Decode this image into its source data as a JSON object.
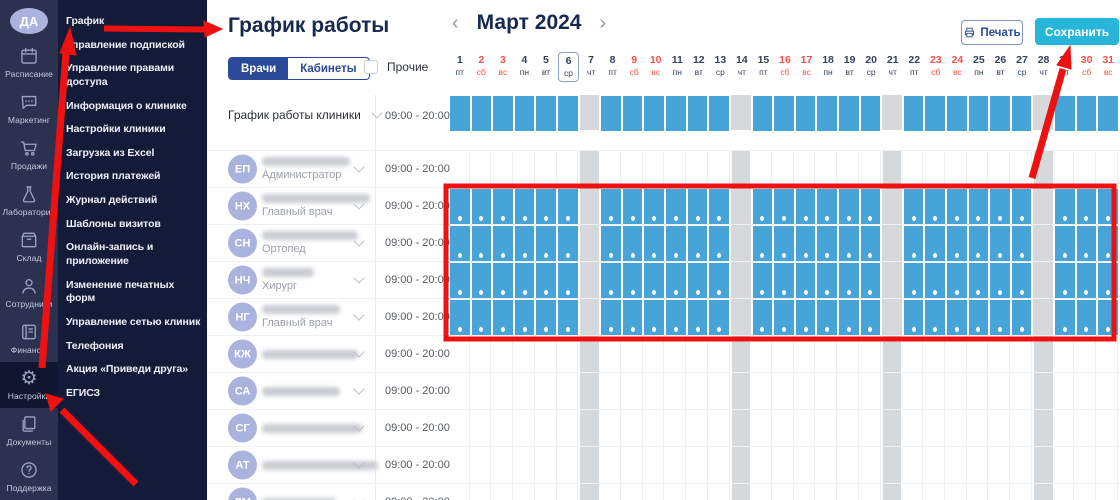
{
  "colors": {
    "annotation_red": "#ee1111",
    "schedule_blue": "#47a4d9",
    "closed_gray": "#d5d9db",
    "primary_navy": "#2a4a97",
    "save_cyan": "#27b6da"
  },
  "sidebar": {
    "avatar_initials": "ДА",
    "items": [
      {
        "id": "schedule",
        "icon": "calendar",
        "label": "Расписание",
        "active": false
      },
      {
        "id": "marketing",
        "icon": "chat",
        "label": "Маркетинг",
        "active": false
      },
      {
        "id": "sales",
        "icon": "cart",
        "label": "Продажи",
        "active": false
      },
      {
        "id": "labs",
        "icon": "flask",
        "label": "Лаборатории",
        "active": false
      },
      {
        "id": "warehouse",
        "icon": "box",
        "label": "Склад",
        "active": false
      },
      {
        "id": "staff",
        "icon": "person",
        "label": "Сотрудники",
        "active": false
      },
      {
        "id": "finance",
        "icon": "finance",
        "label": "Финансы",
        "active": false
      },
      {
        "id": "settings",
        "icon": "gear",
        "label": "Настройки",
        "active": true
      },
      {
        "id": "documents",
        "icon": "docs",
        "label": "Документы",
        "active": false
      },
      {
        "id": "support",
        "icon": "support",
        "label": "Поддержка",
        "active": false
      }
    ]
  },
  "menu": {
    "items": [
      "График",
      "Управление подпиской",
      "Управление правами доступа",
      "Информация о клинике",
      "Настройки клиники",
      "Загрузка из Excel",
      "История платежей",
      "Журнал действий",
      "Шаблоны визитов",
      "Онлайн-запись и приложение",
      "Изменение печатных форм",
      "Управление сетью клиник",
      "Телефония",
      "Акция «Приведи друга»",
      "ЕГИСЗ"
    ]
  },
  "header": {
    "title": "График работы",
    "prev_icon": "‹",
    "next_icon": "›",
    "month": "Март 2024",
    "print_label": "Печать",
    "save_label": "Сохранить"
  },
  "filters": {
    "tabs": [
      {
        "label": "Врачи",
        "active": true
      },
      {
        "label": "Кабинеты",
        "active": false
      }
    ],
    "other_label": "Прочие",
    "other_checked": false
  },
  "calendar": {
    "today": 6,
    "closed_days": [
      7,
      14,
      21,
      28
    ],
    "days": [
      {
        "n": 1,
        "w": "пт"
      },
      {
        "n": 2,
        "w": "сб"
      },
      {
        "n": 3,
        "w": "вс"
      },
      {
        "n": 4,
        "w": "пн"
      },
      {
        "n": 5,
        "w": "вт"
      },
      {
        "n": 6,
        "w": "ср"
      },
      {
        "n": 7,
        "w": "чт"
      },
      {
        "n": 8,
        "w": "пт"
      },
      {
        "n": 9,
        "w": "сб"
      },
      {
        "n": 10,
        "w": "вс"
      },
      {
        "n": 11,
        "w": "пн"
      },
      {
        "n": 12,
        "w": "вт"
      },
      {
        "n": 13,
        "w": "ср"
      },
      {
        "n": 14,
        "w": "чт"
      },
      {
        "n": 15,
        "w": "пт"
      },
      {
        "n": 16,
        "w": "сб"
      },
      {
        "n": 17,
        "w": "вс"
      },
      {
        "n": 18,
        "w": "пн"
      },
      {
        "n": 19,
        "w": "вт"
      },
      {
        "n": 20,
        "w": "ср"
      },
      {
        "n": 21,
        "w": "чт"
      },
      {
        "n": 22,
        "w": "пт"
      },
      {
        "n": 23,
        "w": "сб"
      },
      {
        "n": 24,
        "w": "вс"
      },
      {
        "n": 25,
        "w": "пн"
      },
      {
        "n": 26,
        "w": "вт"
      },
      {
        "n": 27,
        "w": "ср"
      },
      {
        "n": 28,
        "w": "чт"
      },
      {
        "n": 29,
        "w": "пт"
      },
      {
        "n": 30,
        "w": "сб"
      },
      {
        "n": 31,
        "w": "вс"
      }
    ]
  },
  "clinic_row": {
    "label": "График работы клиники",
    "time": "09:00 - 20:00"
  },
  "staff": [
    {
      "initials": "ЕП",
      "role": "Администратор",
      "time": "09:00 - 20:00",
      "scheduled": false,
      "name_width": 88
    },
    {
      "initials": "НХ",
      "role": "Главный врач",
      "time": "09:00 - 20:00",
      "scheduled": true,
      "name_width": 108
    },
    {
      "initials": "СН",
      "role": "Ортопед",
      "time": "09:00 - 20:00",
      "scheduled": true,
      "name_width": 96
    },
    {
      "initials": "НЧ",
      "role": "Хирург",
      "time": "09:00 - 20:00",
      "scheduled": true,
      "name_width": 52
    },
    {
      "initials": "НГ",
      "role": "Главный врач",
      "time": "09:00 - 20:00",
      "scheduled": true,
      "name_width": 78
    },
    {
      "initials": "КЖ",
      "role": "",
      "time": "09:00 - 20:00",
      "scheduled": false,
      "name_width": 96
    },
    {
      "initials": "СА",
      "role": "",
      "time": "09:00 - 20:00",
      "scheduled": false,
      "name_width": 78
    },
    {
      "initials": "СГ",
      "role": "",
      "time": "09:00 - 20:00",
      "scheduled": false,
      "name_width": 100
    },
    {
      "initials": "АТ",
      "role": "",
      "time": "09:00 - 20:00",
      "scheduled": false,
      "name_width": 116
    },
    {
      "initials": "ЛМ",
      "role": "",
      "time": "09:00 - 20:00",
      "scheduled": false,
      "name_width": 74
    }
  ]
}
